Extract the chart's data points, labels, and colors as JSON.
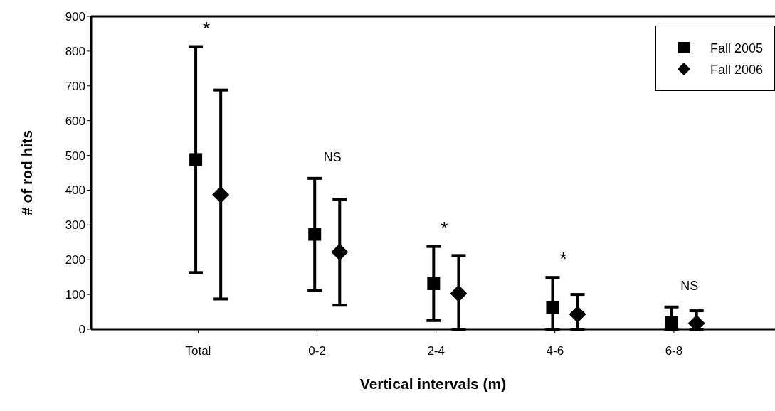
{
  "chart_data": {
    "type": "scatter",
    "xlabel": "Vertical intervals (m)",
    "ylabel": "# of rod hits",
    "categories": [
      "Total",
      "0-2",
      "2-4",
      "4-6",
      "6-8"
    ],
    "series": [
      {
        "name": "Fall 2005",
        "color": "#000000",
        "marker": "square",
        "values": [
          488,
          273,
          131,
          62,
          19
        ],
        "errors": [
          [
            163,
            813
          ],
          [
            112,
            434
          ],
          [
            25,
            238
          ],
          [
            0,
            149
          ],
          [
            0,
            64
          ]
        ]
      },
      {
        "name": "Fall 2006",
        "color": "#000000",
        "marker": "diamond",
        "values": [
          387,
          222,
          103,
          43,
          17
        ],
        "errors": [
          [
            87,
            688
          ],
          [
            69,
            374
          ],
          [
            0,
            212
          ],
          [
            0,
            100
          ],
          [
            0,
            53
          ]
        ]
      }
    ],
    "ylim": [
      0,
      900
    ],
    "yticks": [
      0,
      100,
      200,
      300,
      400,
      500,
      600,
      700,
      800,
      900
    ],
    "legend": "top right",
    "annotations": [
      "*",
      "NS",
      "*",
      "*",
      "NS"
    ]
  }
}
